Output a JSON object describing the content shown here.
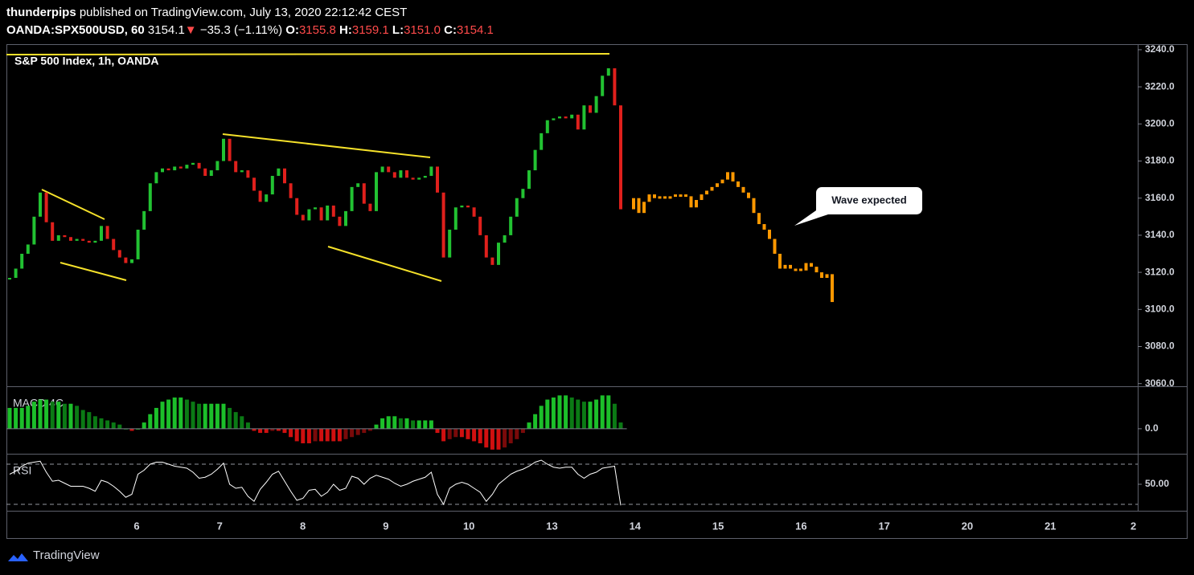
{
  "header": {
    "publisher": "thunderpips",
    "published": "published on TradingView.com, July 13, 2020 22:12:42 CEST",
    "symbol": "OANDA:SPX500USD, 60",
    "last": "3154.1",
    "arrow": "▼",
    "change": "−35.3 (−1.11%)",
    "ohlc": [
      {
        "label": "O:",
        "value": "3155.8"
      },
      {
        "label": "H:",
        "value": "3159.1"
      },
      {
        "label": "L:",
        "value": "3151.0"
      },
      {
        "label": "C:",
        "value": "3154.1"
      }
    ]
  },
  "xaxis": {
    "categories": [
      "6",
      "7",
      "8",
      "9",
      "10",
      "13",
      "14",
      "15",
      "16",
      "17",
      "20",
      "21",
      "2"
    ]
  },
  "chart_data": [
    {
      "type": "candlestick",
      "title": "S&P 500 Index, 1h, OANDA",
      "annotation": "Wave expected",
      "color_up": "#22c232",
      "color_down": "#e0201c",
      "values": [
        3117,
        3122,
        3130,
        3135,
        3150,
        3163,
        3147,
        3137,
        3140,
        3139,
        3137,
        3138,
        3137,
        3136,
        3137,
        3145,
        3138,
        3132,
        3128,
        3125,
        3127,
        3143,
        3153,
        3168,
        3174,
        3176,
        3175,
        3177,
        3176,
        3178,
        3179,
        3176,
        3172,
        3175,
        3180,
        3192,
        3180,
        3174,
        3175,
        3171,
        3164,
        3158,
        3162,
        3172,
        3176,
        3168,
        3160,
        3151,
        3148,
        3154,
        3155,
        3148,
        3156,
        3150,
        3145,
        3153,
        3166,
        3168,
        3157,
        3153,
        3174,
        3177,
        3174,
        3171,
        3175,
        3171,
        3170,
        3171,
        3172,
        3177,
        3163,
        3128,
        3143,
        3155,
        3156,
        3155,
        3150,
        3140,
        3128,
        3124,
        3136,
        3140,
        3150,
        3160,
        3165,
        3175,
        3186,
        3195,
        3202,
        3203,
        3204,
        3203,
        3205,
        3197,
        3210,
        3206,
        3215,
        3226,
        3230,
        3210,
        3154
      ],
      "projection_color": "#ff9800",
      "projection_values": [
        3160,
        3152,
        3158,
        3162,
        3160,
        3161,
        3161,
        3161,
        3162,
        3162,
        3161,
        3155,
        3159,
        3162,
        3164,
        3166,
        3168,
        3170,
        3174,
        3169,
        3166,
        3163,
        3160,
        3152,
        3146,
        3143,
        3138,
        3130,
        3122,
        3124,
        3122,
        3122,
        3121,
        3125,
        3123,
        3120,
        3117,
        3119,
        3104
      ],
      "ylim": [
        3059,
        3243
      ],
      "yticks": [
        {
          "value": 3060,
          "label": "3060.0"
        },
        {
          "value": 3080,
          "label": "3080.0"
        },
        {
          "value": 3100,
          "label": "3100.0"
        },
        {
          "value": 3120,
          "label": "3120.0"
        },
        {
          "value": 3140,
          "label": "3140.0"
        },
        {
          "value": 3160,
          "label": "3160.0"
        },
        {
          "value": 3180,
          "label": "3180.0"
        },
        {
          "value": 3200,
          "label": "3200.0"
        },
        {
          "value": 3220,
          "label": "3220.0"
        },
        {
          "value": 3240,
          "label": "3240.0"
        }
      ]
    },
    {
      "type": "histogram",
      "title": "MACD 4C",
      "colors": {
        "above_rising": "#1cbf2a",
        "above_falling": "#0b7a15",
        "below_falling": "#d01010",
        "below_rising": "#7a0a0a"
      },
      "values": [
        10,
        10,
        10,
        11,
        13,
        14,
        14,
        13,
        13,
        12,
        12,
        11,
        9,
        8,
        6,
        5,
        4,
        3,
        2,
        0,
        -1,
        0,
        3,
        7,
        10,
        13,
        14,
        15,
        15,
        14,
        13,
        12,
        12,
        12,
        12,
        12,
        10,
        8,
        6,
        3,
        -1,
        -2,
        -2,
        -1,
        -1,
        -2,
        -4,
        -6,
        -7,
        -7,
        -6,
        -6,
        -6,
        -6,
        -6,
        -5,
        -4,
        -3,
        -2,
        -1,
        2,
        5,
        6,
        6,
        5,
        5,
        4,
        4,
        4,
        4,
        -2,
        -6,
        -5,
        -4,
        -4,
        -5,
        -6,
        -7,
        -9,
        -10,
        -10,
        -9,
        -7,
        -5,
        -2,
        3,
        7,
        11,
        14,
        15,
        16,
        16,
        15,
        14,
        13,
        13,
        14,
        16,
        16,
        12,
        3
      ],
      "ylim": [
        -12,
        20
      ],
      "yticks": [
        {
          "value": 0,
          "label": "0.0"
        }
      ]
    },
    {
      "type": "line",
      "title": "RSI",
      "color": "#ffffff",
      "values": [
        60,
        63,
        68,
        71,
        72,
        73,
        62,
        53,
        54,
        51,
        48,
        48,
        48,
        46,
        43,
        54,
        52,
        48,
        43,
        37,
        40,
        60,
        64,
        70,
        72,
        72,
        70,
        68,
        67,
        66,
        62,
        56,
        57,
        60,
        65,
        71,
        50,
        46,
        47,
        38,
        33,
        45,
        52,
        60,
        63,
        53,
        43,
        34,
        36,
        44,
        45,
        38,
        42,
        50,
        44,
        46,
        58,
        56,
        50,
        56,
        59,
        57,
        55,
        51,
        48,
        50,
        53,
        55,
        57,
        62,
        40,
        30,
        46,
        50,
        52,
        50,
        46,
        42,
        33,
        40,
        50,
        55,
        60,
        63,
        65,
        68,
        72,
        74,
        70,
        67,
        66,
        67,
        67,
        60,
        56,
        60,
        62,
        66,
        67,
        68,
        29
      ],
      "levels": [
        70,
        30
      ],
      "ylim": [
        23.6,
        78.8
      ],
      "yticks": [
        {
          "value": 50,
          "label": "50.00"
        }
      ]
    }
  ],
  "footer": {
    "brand": "TradingView"
  }
}
